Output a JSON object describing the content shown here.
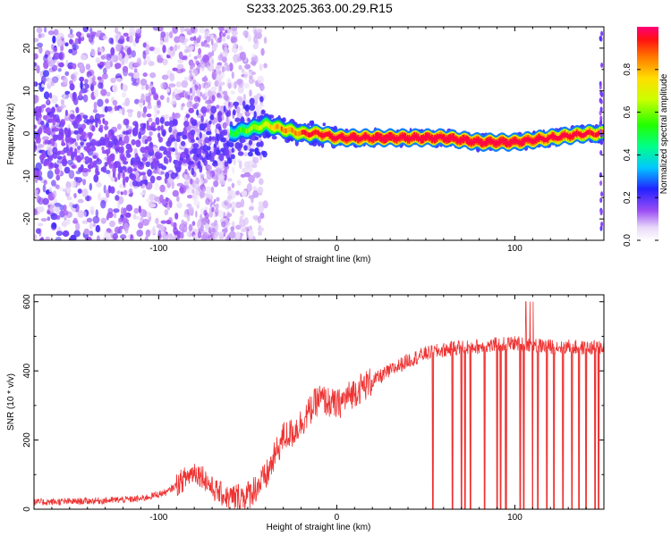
{
  "title": "S233.2025.363.00.29.R15",
  "chart_data": [
    {
      "type": "heatmap",
      "xlabel": "Height of straight line (km)",
      "ylabel": "Frequency (Hz)",
      "xlim": [
        -170,
        150
      ],
      "ylim": [
        -25,
        25
      ],
      "xticks": [
        -100,
        0,
        100
      ],
      "yticks": [
        -20,
        -10,
        0,
        10,
        20
      ],
      "colorbar": {
        "label": "Normalized spectral amplitude",
        "range": [
          0,
          1
        ],
        "ticks": [
          0.0,
          0.2,
          0.4,
          0.6,
          0.8
        ],
        "tick_labels": [
          "0.0",
          "0.2",
          "0.4",
          "0.6",
          "0.8"
        ]
      },
      "ridge": {
        "x": [
          -170,
          -150,
          -130,
          -110,
          -100,
          -90,
          -80,
          -70,
          -60,
          -50,
          -40,
          -30,
          -20,
          -10,
          0,
          20,
          40,
          60,
          80,
          100,
          120,
          140,
          148
        ],
        "freq": [
          0,
          -1,
          -3,
          -5,
          -4,
          -3,
          -2,
          -1,
          0,
          1,
          2,
          1,
          0,
          0,
          -1,
          -1,
          -1,
          -1,
          -2,
          -2,
          -1,
          0,
          0
        ],
        "amplitude": [
          0.05,
          0.08,
          0.1,
          0.15,
          0.2,
          0.25,
          0.3,
          0.35,
          0.4,
          0.5,
          0.6,
          0.7,
          0.75,
          0.85,
          0.9,
          0.95,
          0.95,
          0.95,
          0.95,
          0.95,
          0.9,
          0.85,
          0.8
        ]
      }
    },
    {
      "type": "line",
      "xlabel": "Height of straight line (km)",
      "ylabel": "SNR (10 * v/v)",
      "xlim": [
        -170,
        150
      ],
      "ylim": [
        0,
        620
      ],
      "xticks": [
        -100,
        0,
        100
      ],
      "yticks": [
        0,
        200,
        400,
        600
      ],
      "color": "#ee3333",
      "series": [
        {
          "name": "SNR",
          "x": [
            -170,
            -150,
            -130,
            -110,
            -95,
            -85,
            -80,
            -75,
            -70,
            -60,
            -50,
            -40,
            -35,
            -30,
            -25,
            -20,
            -10,
            0,
            10,
            20,
            30,
            40,
            50,
            60,
            70,
            80,
            90,
            100,
            110,
            120,
            130,
            140,
            150
          ],
          "y": [
            20,
            22,
            25,
            30,
            50,
            90,
            110,
            95,
            60,
            30,
            40,
            90,
            150,
            210,
            220,
            250,
            320,
            300,
            340,
            370,
            400,
            430,
            450,
            460,
            470,
            470,
            475,
            480,
            475,
            470,
            470,
            465,
            470
          ]
        }
      ],
      "dropouts": [
        54,
        65,
        70,
        72,
        75,
        83,
        90,
        92,
        95,
        103,
        105,
        110,
        113,
        118,
        122,
        127,
        132,
        136,
        140,
        145,
        147
      ]
    }
  ]
}
